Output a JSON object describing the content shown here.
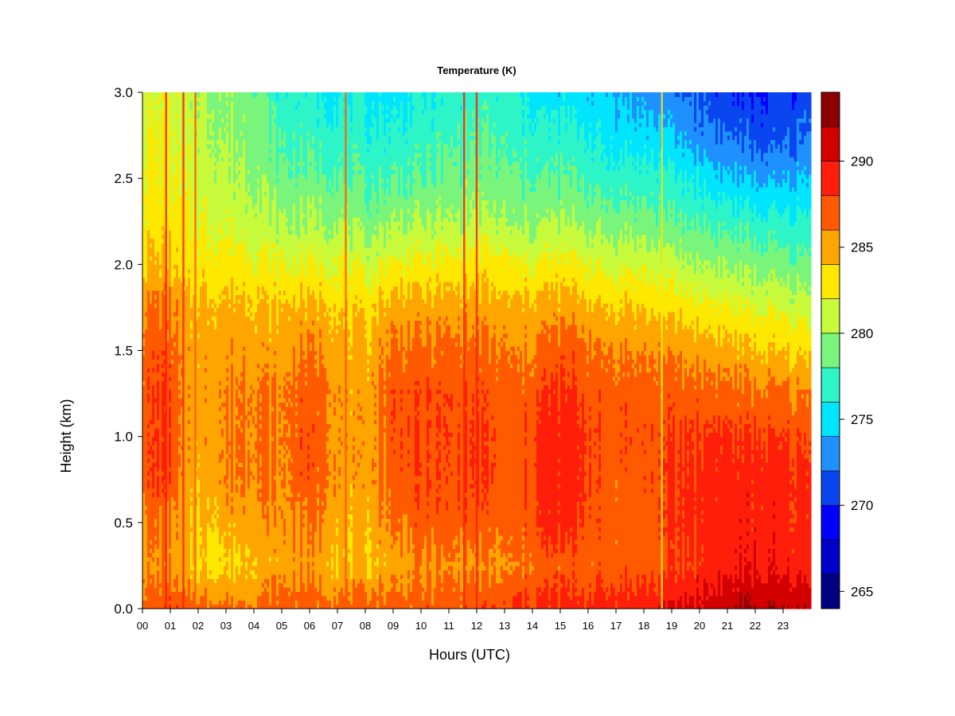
{
  "chart_data": {
    "type": "heatmap",
    "title": "Temperature (K)",
    "xlabel": "Hours (UTC)",
    "ylabel": "Height (km)",
    "xlim": [
      0,
      24
    ],
    "ylim": [
      0,
      3.0
    ],
    "x_ticks": [
      "00",
      "01",
      "02",
      "03",
      "04",
      "05",
      "06",
      "07",
      "08",
      "09",
      "10",
      "11",
      "12",
      "13",
      "14",
      "15",
      "16",
      "17",
      "18",
      "19",
      "20",
      "21",
      "22",
      "23"
    ],
    "y_ticks": [
      "0.0",
      "0.5",
      "1.0",
      "1.5",
      "2.0",
      "2.5",
      "3.0"
    ],
    "colorbar": {
      "label_values": [
        265,
        270,
        275,
        280,
        285,
        290
      ],
      "range": [
        264,
        294
      ],
      "levels": [
        {
          "from": 264,
          "to": 266,
          "color": "#000080"
        },
        {
          "from": 266,
          "to": 268,
          "color": "#0000c8"
        },
        {
          "from": 268,
          "to": 270,
          "color": "#0000ff"
        },
        {
          "from": 270,
          "to": 272,
          "color": "#0a46f0"
        },
        {
          "from": 272,
          "to": 274,
          "color": "#1e90ff"
        },
        {
          "from": 274,
          "to": 276,
          "color": "#00e5ff"
        },
        {
          "from": 276,
          "to": 278,
          "color": "#2ef5c8"
        },
        {
          "from": 278,
          "to": 280,
          "color": "#78f57a"
        },
        {
          "from": 280,
          "to": 282,
          "color": "#c8fa3c"
        },
        {
          "from": 282,
          "to": 284,
          "color": "#ffe800"
        },
        {
          "from": 284,
          "to": 286,
          "color": "#ffa500"
        },
        {
          "from": 286,
          "to": 288,
          "color": "#ff5a00"
        },
        {
          "from": 288,
          "to": 290,
          "color": "#ff1e0a"
        },
        {
          "from": 290,
          "to": 292,
          "color": "#d20000"
        },
        {
          "from": 292,
          "to": 294,
          "color": "#8c0000"
        }
      ]
    },
    "profile_heights_km": [
      0.0,
      0.25,
      0.5,
      0.75,
      1.0,
      1.25,
      1.5,
      1.75,
      2.0,
      2.25,
      2.5,
      2.75,
      3.0
    ],
    "profiles": [
      {
        "hour": 0.0,
        "temps": [
          287.5,
          285.5,
          286.0,
          287.0,
          287.0,
          287.0,
          286.8,
          286.0,
          284.0,
          283.0,
          282.5,
          282.0,
          281.5
        ]
      },
      {
        "hour": 0.5,
        "temps": [
          287.5,
          285.5,
          286.5,
          288.0,
          288.0,
          288.0,
          287.5,
          286.5,
          284.5,
          283.0,
          282.5,
          282.0,
          281.5
        ]
      },
      {
        "hour": 1.0,
        "temps": [
          287.5,
          285.5,
          286.0,
          287.5,
          287.5,
          287.5,
          287.0,
          286.0,
          284.0,
          283.0,
          282.0,
          281.8,
          281.5
        ]
      },
      {
        "hour": 1.5,
        "temps": [
          287.0,
          284.0,
          284.5,
          285.0,
          285.0,
          285.0,
          285.0,
          284.5,
          283.0,
          282.0,
          281.5,
          281.0,
          281.0
        ]
      },
      {
        "hour": 2.0,
        "temps": [
          287.0,
          283.5,
          284.0,
          284.5,
          285.0,
          285.0,
          285.0,
          284.5,
          283.0,
          282.0,
          281.0,
          280.8,
          280.5
        ]
      },
      {
        "hour": 3.0,
        "temps": [
          286.5,
          283.5,
          284.5,
          286.0,
          286.0,
          286.0,
          285.5,
          284.5,
          283.0,
          281.5,
          280.5,
          280.0,
          279.5
        ]
      },
      {
        "hour": 4.0,
        "temps": [
          286.5,
          284.5,
          285.5,
          286.5,
          286.5,
          286.5,
          285.5,
          284.5,
          282.5,
          281.0,
          280.0,
          279.5,
          279.0
        ]
      },
      {
        "hour": 5.0,
        "temps": [
          287.0,
          285.0,
          285.5,
          285.5,
          285.5,
          285.5,
          285.0,
          284.0,
          282.0,
          280.0,
          278.5,
          277.5,
          276.5
        ]
      },
      {
        "hour": 5.5,
        "temps": [
          287.0,
          285.5,
          286.0,
          287.0,
          287.0,
          287.0,
          286.0,
          284.5,
          282.0,
          280.0,
          278.5,
          277.5,
          276.5
        ]
      },
      {
        "hour": 6.5,
        "temps": [
          287.0,
          285.0,
          286.0,
          287.0,
          287.0,
          287.0,
          286.0,
          284.5,
          282.0,
          280.0,
          278.5,
          277.0,
          276.0
        ]
      },
      {
        "hour": 7.3,
        "temps": [
          287.0,
          284.0,
          284.5,
          285.0,
          285.0,
          285.0,
          284.5,
          283.5,
          282.0,
          280.0,
          278.0,
          277.0,
          276.0
        ]
      },
      {
        "hour": 8.0,
        "temps": [
          287.0,
          284.0,
          284.5,
          285.0,
          285.0,
          285.0,
          284.5,
          283.5,
          281.0,
          279.0,
          277.5,
          276.5,
          275.5
        ]
      },
      {
        "hour": 9.0,
        "temps": [
          287.0,
          285.0,
          286.5,
          287.0,
          287.5,
          287.5,
          286.5,
          285.0,
          282.5,
          280.0,
          278.0,
          276.5,
          275.0
        ]
      },
      {
        "hour": 10.0,
        "temps": [
          287.0,
          285.5,
          287.0,
          287.5,
          287.5,
          287.5,
          286.5,
          285.0,
          282.5,
          280.0,
          278.0,
          277.0,
          276.0
        ]
      },
      {
        "hour": 11.0,
        "temps": [
          287.0,
          285.5,
          287.0,
          287.5,
          287.5,
          287.5,
          286.5,
          285.0,
          282.5,
          280.0,
          278.5,
          277.5,
          276.5
        ]
      },
      {
        "hour": 12.0,
        "temps": [
          287.5,
          285.5,
          287.0,
          288.0,
          288.0,
          287.5,
          286.5,
          285.0,
          283.0,
          280.5,
          279.0,
          278.0,
          277.0
        ]
      },
      {
        "hour": 13.0,
        "temps": [
          287.5,
          285.5,
          286.5,
          287.0,
          287.0,
          287.0,
          286.0,
          284.5,
          282.5,
          280.0,
          278.5,
          277.5,
          276.5
        ]
      },
      {
        "hour": 13.5,
        "temps": [
          288.5,
          286.0,
          286.5,
          287.0,
          287.0,
          286.5,
          285.5,
          284.5,
          282.0,
          279.5,
          278.0,
          277.0,
          276.0
        ]
      },
      {
        "hour": 14.5,
        "temps": [
          288.5,
          287.0,
          288.5,
          289.0,
          289.0,
          288.0,
          287.0,
          285.0,
          282.5,
          280.0,
          278.0,
          276.5,
          275.0
        ]
      },
      {
        "hour": 15.5,
        "temps": [
          288.5,
          287.0,
          288.5,
          289.0,
          289.0,
          288.0,
          287.0,
          285.0,
          282.5,
          280.0,
          278.0,
          276.5,
          275.0
        ]
      },
      {
        "hour": 16.5,
        "temps": [
          289.0,
          287.0,
          287.0,
          287.0,
          287.5,
          287.0,
          286.0,
          284.0,
          281.5,
          279.0,
          277.0,
          275.5,
          274.5
        ]
      },
      {
        "hour": 17.5,
        "temps": [
          289.0,
          287.0,
          287.0,
          287.0,
          287.5,
          287.0,
          286.0,
          284.0,
          281.5,
          279.0,
          277.0,
          275.0,
          273.5
        ]
      },
      {
        "hour": 18.5,
        "temps": [
          289.5,
          287.0,
          287.5,
          287.5,
          287.5,
          287.0,
          285.5,
          283.5,
          281.0,
          278.5,
          276.5,
          274.5,
          273.0
        ]
      },
      {
        "hour": 19.5,
        "temps": [
          290.5,
          288.0,
          288.5,
          288.5,
          288.0,
          287.0,
          285.5,
          283.0,
          280.5,
          278.0,
          276.0,
          273.5,
          272.0
        ]
      },
      {
        "hour": 20.5,
        "temps": [
          291.0,
          289.0,
          289.0,
          289.0,
          288.5,
          287.0,
          285.0,
          282.5,
          280.0,
          277.5,
          275.0,
          272.5,
          271.0
        ]
      },
      {
        "hour": 21.5,
        "temps": [
          292.0,
          289.5,
          289.0,
          289.0,
          288.0,
          286.5,
          284.5,
          282.0,
          279.5,
          277.0,
          274.0,
          271.5,
          270.0
        ]
      },
      {
        "hour": 22.5,
        "temps": [
          292.0,
          289.5,
          289.0,
          289.0,
          288.0,
          286.5,
          284.0,
          281.5,
          279.0,
          276.5,
          273.5,
          271.0,
          270.0
        ]
      },
      {
        "hour": 23.9,
        "temps": [
          291.5,
          289.0,
          288.5,
          288.5,
          287.5,
          286.0,
          283.5,
          281.0,
          278.5,
          276.5,
          274.0,
          272.0,
          271.0
        ]
      }
    ],
    "vertical_streaks": [
      {
        "hour": 0.85,
        "color": "#ff1e0a"
      },
      {
        "hour": 1.47,
        "color": "#ff1e0a"
      },
      {
        "hour": 1.9,
        "color": "#ff5a00"
      },
      {
        "hour": 7.3,
        "color": "#ff5a00"
      },
      {
        "hour": 11.55,
        "color": "#ff1e0a"
      },
      {
        "hour": 12.0,
        "color": "#ff1e0a"
      },
      {
        "hour": 18.65,
        "color": "#ffe800"
      }
    ]
  }
}
